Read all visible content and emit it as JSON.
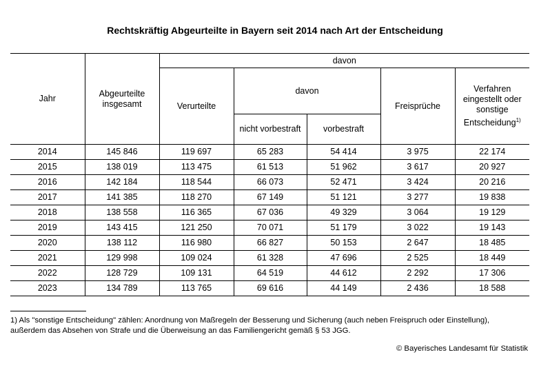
{
  "title": "Rechtskräftig Abgeurteilte in Bayern seit 2014 nach Art der Entscheidung",
  "headers": {
    "jahr": "Jahr",
    "insgesamt": "Abgeurteilte insgesamt",
    "davon": "davon",
    "verurteilte": "Verurteilte",
    "davon2": "davon",
    "nicht_vorbestraft": "nicht vorbestraft",
    "vorbestraft": "vorbestraft",
    "freisprueche": "Freisprüche",
    "verfahren": "Verfahren eingestellt oder sonstige Entscheidung",
    "verfahren_fn": "1)"
  },
  "rows": [
    [
      "2014",
      "145 846",
      "119 697",
      "65 283",
      "54 414",
      "3 975",
      "22 174"
    ],
    [
      "2015",
      "138 019",
      "113 475",
      "61 513",
      "51 962",
      "3 617",
      "20 927"
    ],
    [
      "2016",
      "142 184",
      "118 544",
      "66 073",
      "52 471",
      "3 424",
      "20 216"
    ],
    [
      "2017",
      "141 385",
      "118 270",
      "67 149",
      "51 121",
      "3 277",
      "19 838"
    ],
    [
      "2018",
      "138 558",
      "116 365",
      "67 036",
      "49 329",
      "3 064",
      "19 129"
    ],
    [
      "2019",
      "143 415",
      "121 250",
      "70 071",
      "51 179",
      "3 022",
      "19 143"
    ],
    [
      "2020",
      "138 112",
      "116 980",
      "66 827",
      "50 153",
      "2 647",
      "18 485"
    ],
    [
      "2021",
      "129 998",
      "109 024",
      "61 328",
      "47 696",
      "2 525",
      "18 449"
    ],
    [
      "2022",
      "128 729",
      "109 131",
      "64 519",
      "44 612",
      "2 292",
      "17 306"
    ],
    [
      "2023",
      "134 789",
      "113 765",
      "69 616",
      "44 149",
      "2 436",
      "18 588"
    ]
  ],
  "footnote": "1) Als \"sonstige Entscheidung\" zählen: Anordnung von Maßregeln der Besserung und Sicherung (auch neben Freispruch oder Einstellung), außerdem das Absehen von Strafe und die Überweisung an das Familiengericht gemäß § 53 JGG.",
  "source": "© Bayerisches Landesamt für Statistik"
}
